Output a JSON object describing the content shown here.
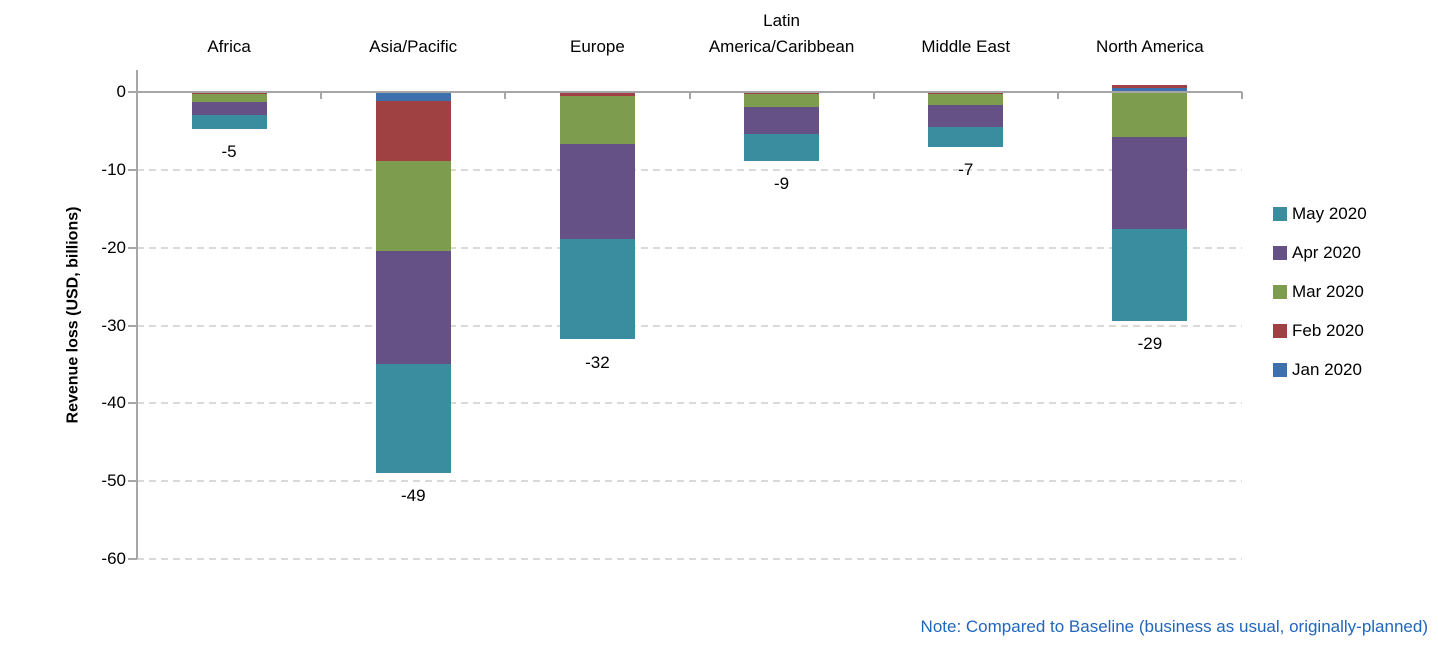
{
  "chart_data": {
    "type": "bar",
    "stacked": true,
    "title": "",
    "ylabel": "Revenue loss (USD, billions)",
    "ylim": [
      -60,
      3
    ],
    "yticks": [
      0,
      -10,
      -20,
      -30,
      -40,
      -50,
      -60
    ],
    "grid": "horizontal-dashed",
    "legend_position": "right",
    "categories": [
      "Africa",
      "Asia/Pacific",
      "Europe",
      "Latin\nAmerica/Caribbean",
      "Middle East",
      "North America"
    ],
    "series": [
      {
        "name": "Jan 2020",
        "color": "#3f70ae",
        "values": [
          0,
          -1.1,
          0,
          0,
          0,
          0.5
        ]
      },
      {
        "name": "Feb 2020",
        "color": "#9f4142",
        "values": [
          -0.3,
          -7.8,
          -0.5,
          -0.2,
          -0.2,
          0.4
        ]
      },
      {
        "name": "Mar 2020",
        "color": "#7e9c4d",
        "values": [
          -1.0,
          -11.5,
          -6.2,
          -1.7,
          -1.5,
          -5.8
        ]
      },
      {
        "name": "Apr 2020",
        "color": "#665186",
        "values": [
          -1.7,
          -14.6,
          -12.2,
          -3.5,
          -2.8,
          -11.8
        ]
      },
      {
        "name": "May 2020",
        "color": "#398d9f",
        "values": [
          -1.8,
          -14.0,
          -12.9,
          -3.5,
          -2.6,
          -11.8
        ]
      }
    ],
    "total_labels": [
      "-5",
      "-49",
      "-32",
      "-9",
      "-7",
      "-29"
    ],
    "legend_items": [
      {
        "label": "May 2020",
        "color": "#398d9f"
      },
      {
        "label": "Apr 2020",
        "color": "#665186"
      },
      {
        "label": "Mar 2020",
        "color": "#7e9c4d"
      },
      {
        "label": "Feb 2020",
        "color": "#9f4142"
      },
      {
        "label": "Jan 2020",
        "color": "#3f70ae"
      }
    ],
    "note": "Note: Compared to Baseline (business as usual, originally-planned)"
  },
  "colors": {
    "axis": "#a6a6a6",
    "gridline": "#d9d9d9",
    "text": "#000000",
    "note": "#2166bd",
    "background": "#ffffff"
  }
}
